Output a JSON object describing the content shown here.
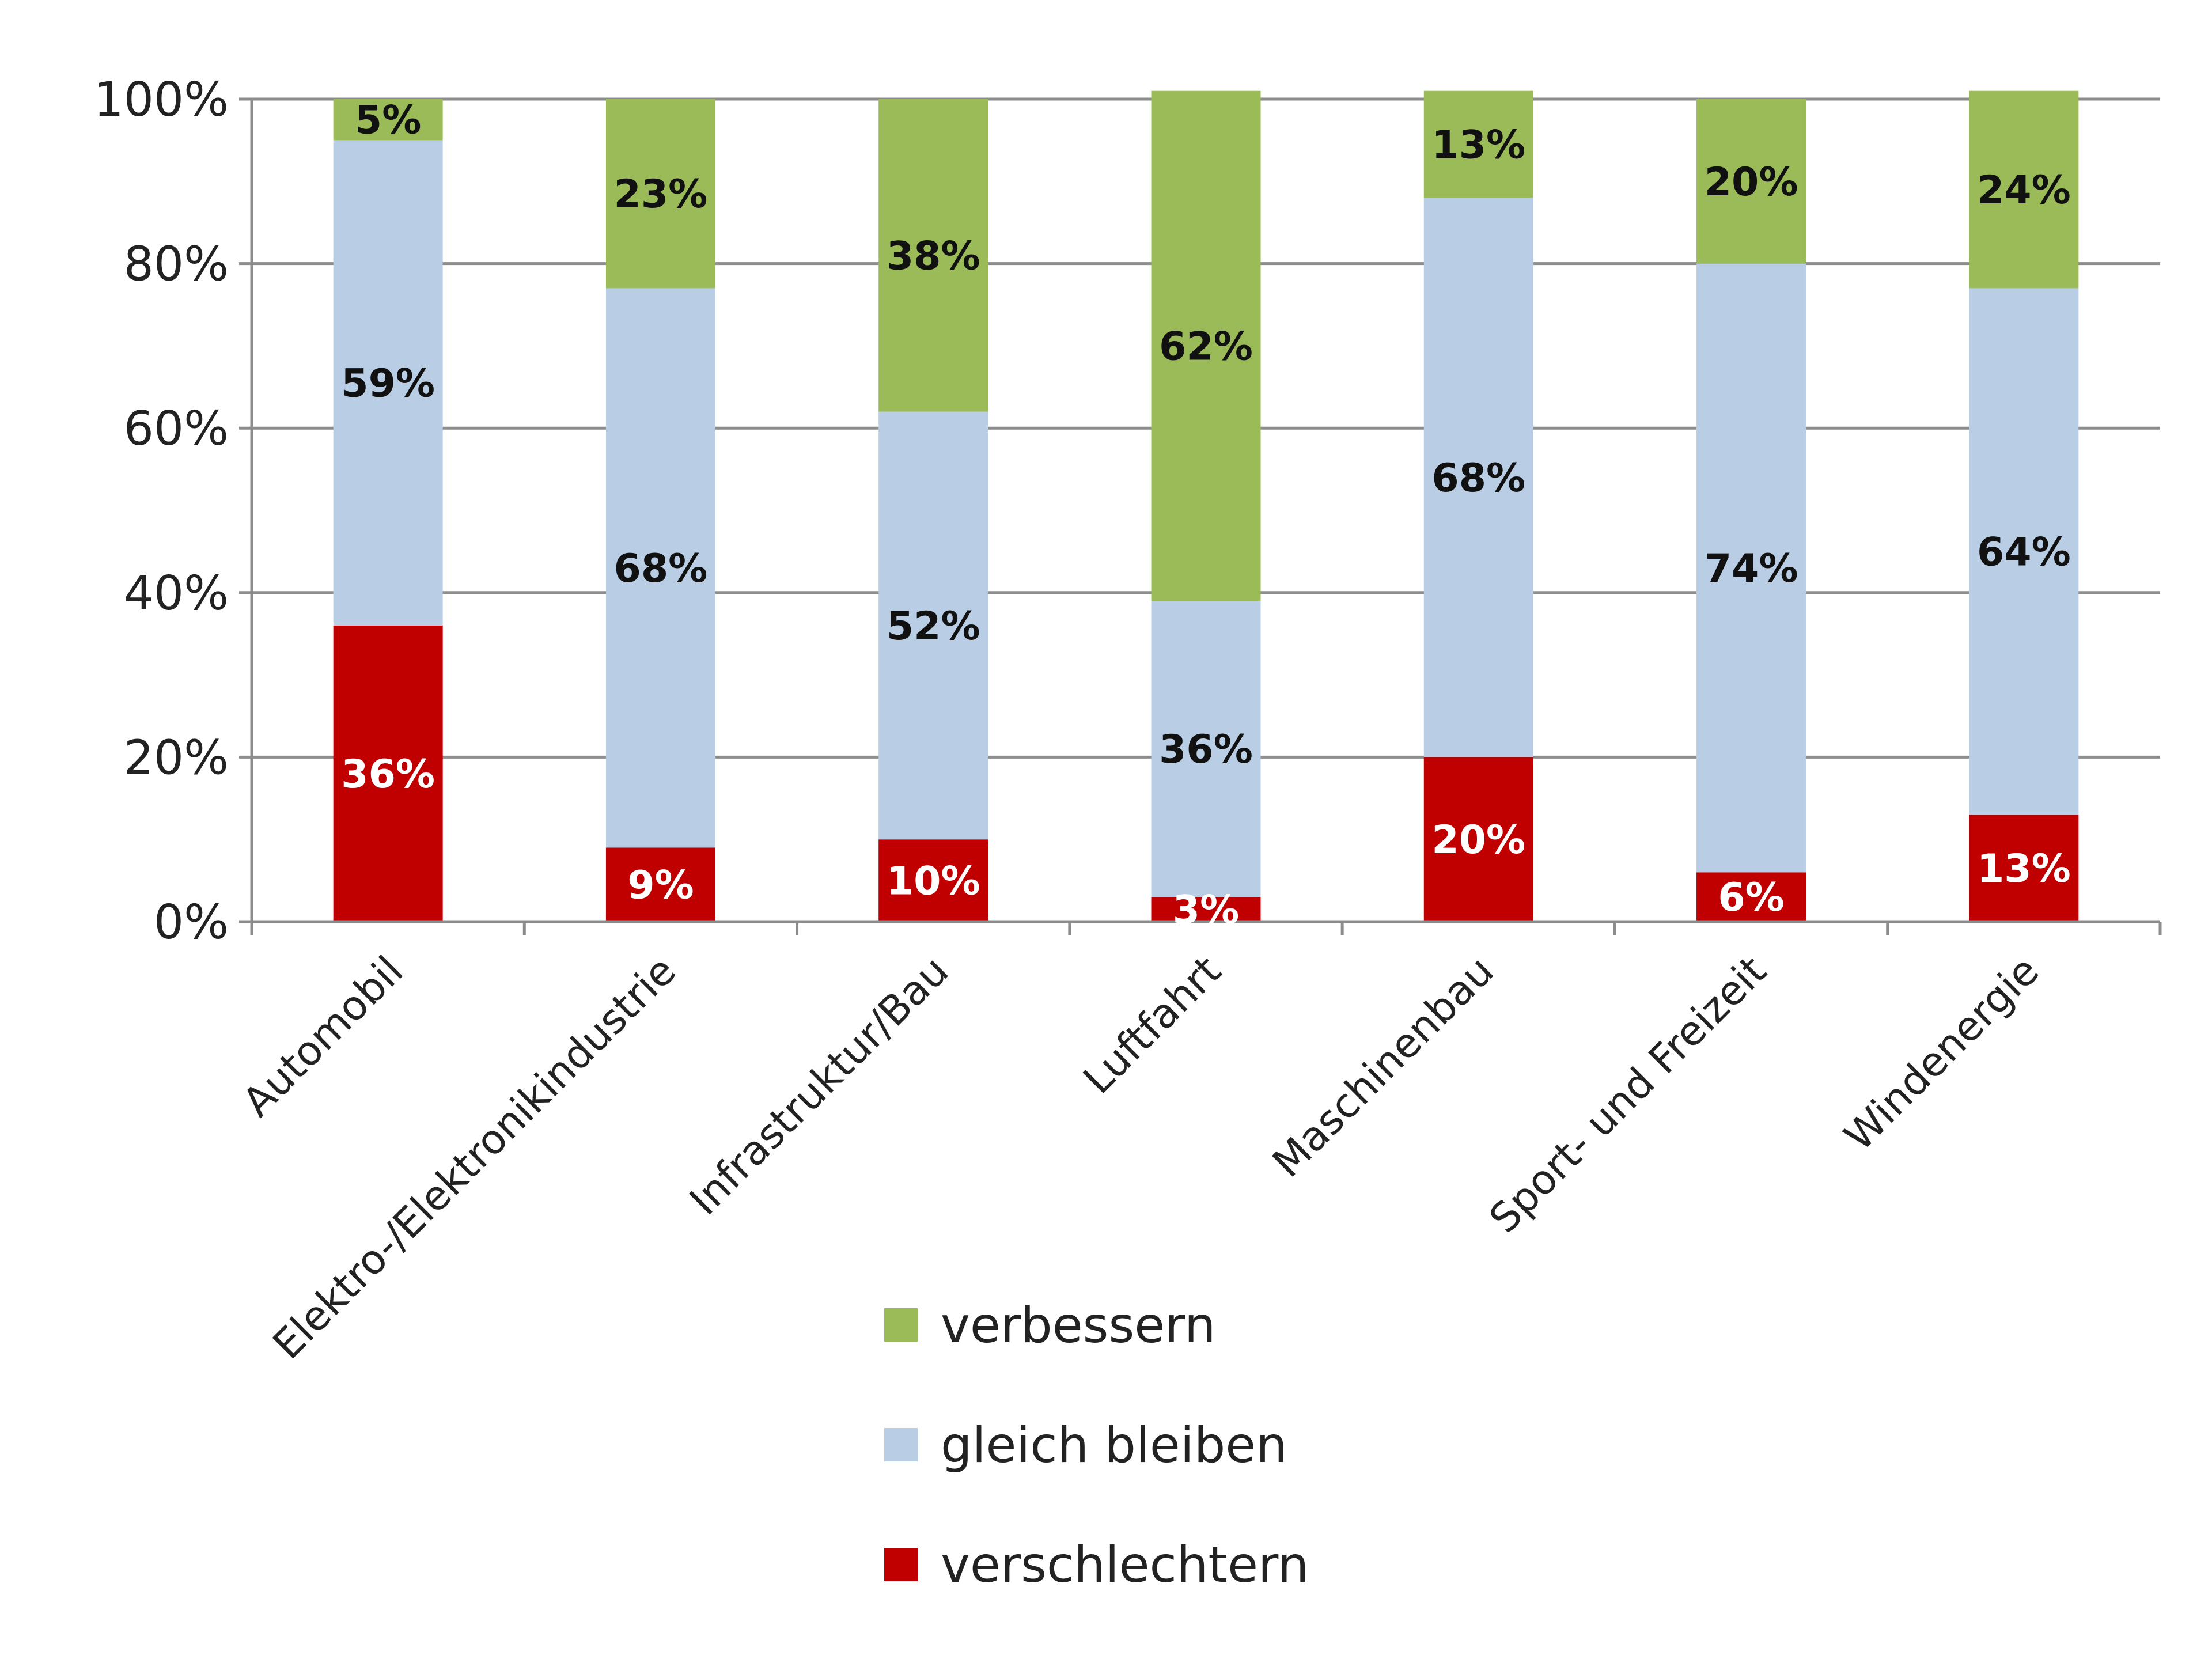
{
  "chart_data": {
    "type": "bar",
    "stacked": true,
    "categories": [
      "Automobil",
      "Elektro-/Elektronikindustrie",
      "Infrastruktur/Bau",
      "Luftfahrt",
      "Maschinenbau",
      "Sport- und Freizeit",
      "Windenergie"
    ],
    "series": [
      {
        "name": "verschlechtern",
        "color": "#C00000",
        "label_color": "#ffffff",
        "values": [
          36,
          9,
          10,
          3,
          20,
          6,
          13
        ],
        "labels": [
          "36%",
          "9%",
          "10%",
          "3%",
          "20%",
          "6%",
          "13%"
        ]
      },
      {
        "name": "gleich bleiben",
        "color": "#B9CDE5",
        "label_color": "#111111",
        "values": [
          59,
          68,
          52,
          36,
          68,
          74,
          64
        ],
        "labels": [
          "59%",
          "68%",
          "52%",
          "36%",
          "68%",
          "74%",
          "64%"
        ]
      },
      {
        "name": "verbessern",
        "color": "#9BBB59",
        "label_color": "#111111",
        "values": [
          5,
          23,
          38,
          62,
          13,
          20,
          24
        ],
        "labels": [
          "5%",
          "23%",
          "38%",
          "62%",
          "13%",
          "20%",
          "24%"
        ]
      }
    ],
    "ylim": [
      0,
      100
    ],
    "yticks": [
      0,
      20,
      40,
      60,
      80,
      100
    ],
    "ytick_labels": [
      "0%",
      "20%",
      "40%",
      "60%",
      "80%",
      "100%"
    ],
    "grid": true,
    "legend_position": "bottom",
    "legend_order": [
      "verbessern",
      "gleich bleiben",
      "verschlechtern"
    ],
    "title": "",
    "xlabel": "",
    "ylabel": ""
  }
}
